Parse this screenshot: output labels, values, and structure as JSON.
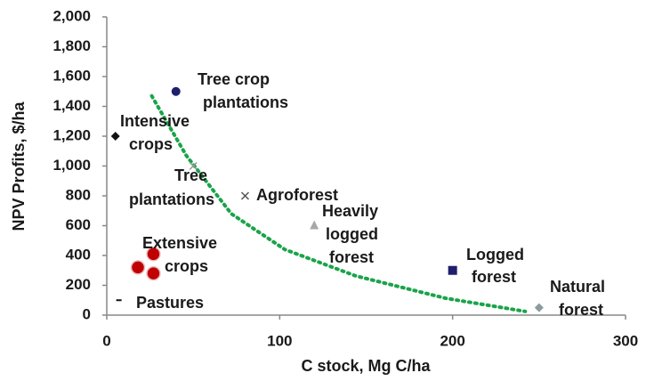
{
  "chart_data": {
    "type": "scatter",
    "x_label": "C stock, Mg C/ha",
    "y_label": "NPV Profits, $/ha",
    "xlim": [
      0,
      300
    ],
    "ylim": [
      0,
      2000
    ],
    "xticks": [
      0,
      100,
      200,
      300
    ],
    "yticks": [
      0,
      200,
      400,
      600,
      800,
      {
        "value": 1000,
        "label": "1,000"
      },
      {
        "value": 1200,
        "label": "1,200"
      },
      {
        "value": 1400,
        "label": "1,400"
      },
      {
        "value": 1600,
        "label": "1,600"
      },
      {
        "value": 1800,
        "label": "1,800"
      },
      {
        "value": 2000,
        "label": "2,000"
      }
    ],
    "grid": false,
    "points": [
      {
        "label": [
          "Intensive",
          "crops"
        ],
        "marker": "diamond",
        "color": "#111111",
        "x": [
          5
        ],
        "y": [
          1200
        ]
      },
      {
        "label": [
          "Tree crop",
          "plantations"
        ],
        "marker": "circle",
        "color": "#1f1f6e",
        "x": [
          40
        ],
        "y": [
          1500
        ]
      },
      {
        "label": [
          "Tree",
          "plantations"
        ],
        "marker": "cross",
        "color": "#9a9a9a",
        "x": [
          50
        ],
        "y": [
          1000
        ]
      },
      {
        "label": [
          "Agroforest"
        ],
        "marker": "cross",
        "color": "#555555",
        "x": [
          80
        ],
        "y": [
          800
        ]
      },
      {
        "label": [
          "Heavily",
          "logged",
          "forest"
        ],
        "marker": "triangle",
        "color": "#a8a8a8",
        "x": [
          120
        ],
        "y": [
          600
        ]
      },
      {
        "label": [
          "Logged",
          "forest"
        ],
        "marker": "square",
        "color": "#1f1f6e",
        "x": [
          200
        ],
        "y": [
          300
        ]
      },
      {
        "label": [
          "Natural",
          "forest"
        ],
        "marker": "diamond",
        "color": "#8a9aa0",
        "x": [
          250
        ],
        "y": [
          50
        ]
      },
      {
        "label": [
          "Extensive",
          "crops"
        ],
        "marker": "bigcircle",
        "color": "#c00000",
        "x": [
          18,
          27,
          27
        ],
        "y": [
          320,
          410,
          280
        ]
      },
      {
        "label": [
          "Pastures"
        ],
        "marker": "dash",
        "color": "#111111",
        "x": [
          7
        ],
        "y": [
          100
        ]
      }
    ],
    "trend": {
      "color": "#1aa34a",
      "dotted": true,
      "x": [
        26,
        46,
        72,
        103,
        144,
        196,
        242
      ],
      "values": [
        1470,
        1070,
        680,
        440,
        263,
        113,
        25
      ]
    }
  }
}
